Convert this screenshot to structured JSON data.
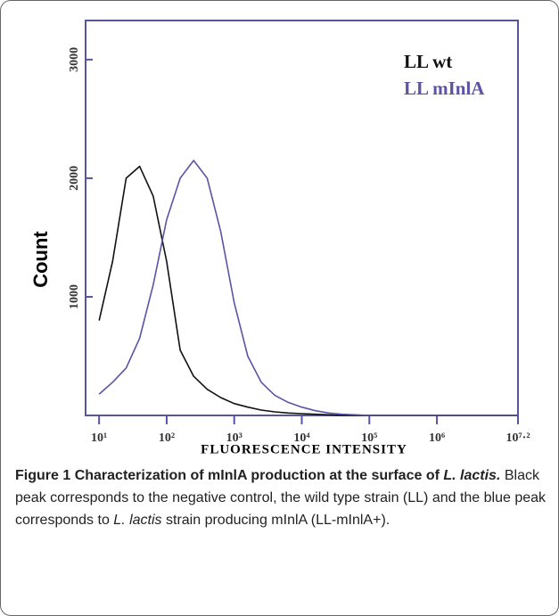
{
  "chart_data": {
    "type": "line",
    "xlabel": "FLUORESCENCE INTENSITY",
    "ylabel": "Count",
    "xscale": "log",
    "xlim": [
      6.31,
      15848932
    ],
    "ylim": [
      0,
      3330
    ],
    "xticks": [
      {
        "value": 10,
        "label": "10¹"
      },
      {
        "value": 100,
        "label": "10²"
      },
      {
        "value": 1000,
        "label": "10³"
      },
      {
        "value": 10000,
        "label": "10⁴"
      },
      {
        "value": 100000,
        "label": "10⁵"
      },
      {
        "value": 1000000,
        "label": "10⁶"
      },
      {
        "value": 15848932,
        "label": "10⁷·²"
      }
    ],
    "yticks": [
      1000,
      2000,
      3000
    ],
    "legend": "top-right",
    "x": [
      10,
      15.85,
      25.12,
      39.81,
      63.1,
      100,
      158.5,
      251.2,
      398.1,
      631,
      1000,
      1585,
      2512,
      3981,
      6310,
      10000,
      15849,
      25119,
      39811,
      63096,
      100000,
      158489,
      251189,
      398107,
      630957,
      1000000,
      1584893,
      2511886,
      3981072,
      6309573,
      10000000,
      15848932
    ],
    "series": [
      {
        "name": "LL wt",
        "color": "#111111",
        "values": [
          800,
          1300,
          2000,
          2100,
          1850,
          1300,
          550,
          330,
          220,
          150,
          100,
          70,
          45,
          30,
          20,
          15,
          10,
          5,
          0,
          0,
          0,
          0,
          0,
          0,
          0,
          0,
          0,
          0,
          0,
          0,
          0,
          0
        ]
      },
      {
        "name": "LL mInlA",
        "color": "#5a54a6",
        "values": [
          180,
          280,
          400,
          650,
          1100,
          1650,
          2000,
          2150,
          2000,
          1550,
          950,
          500,
          280,
          170,
          110,
          70,
          40,
          20,
          10,
          5,
          0,
          0,
          0,
          0,
          0,
          0,
          0,
          0,
          0,
          0,
          0,
          0
        ]
      }
    ]
  },
  "caption": {
    "label": "Figure 1",
    "title": "Characterization of mInlA production at the surface of",
    "title_species": "L. lactis.",
    "text_a": "Black peak corresponds to the negative control, the wild type strain (LL) and the blue peak corresponds to",
    "text_species": "L. lactis",
    "text_b": "strain producing mInlA (LL-mInlA+)."
  }
}
